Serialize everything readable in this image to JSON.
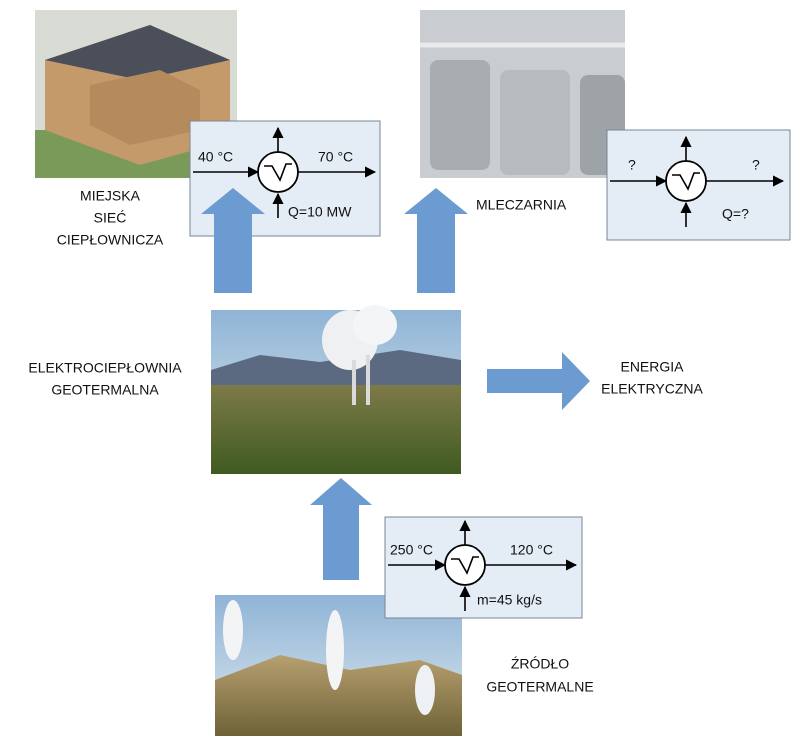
{
  "labels": {
    "district_heating": [
      "MIEJSKA",
      "SIEĆ",
      "CIEPŁOWNICZA"
    ],
    "dairy": "MLECZARNIA",
    "power_plant": [
      "ELEKTROCIEPŁOWNIA",
      "GEOTERMALNA"
    ],
    "electricity": [
      "ENERGIA",
      "ELEKTRYCZNA"
    ],
    "source": [
      "ŹRÓDŁO",
      "GEOTERMALNE"
    ]
  },
  "exchangers": [
    {
      "inlet": "40 °C",
      "outlet": "70 °C",
      "note": "Q=10 MW"
    },
    {
      "inlet": "?",
      "outlet": "?",
      "note": "Q=?"
    },
    {
      "inlet": "250 °C",
      "outlet": "120 °C",
      "note": "m=45 kg/s"
    }
  ]
}
